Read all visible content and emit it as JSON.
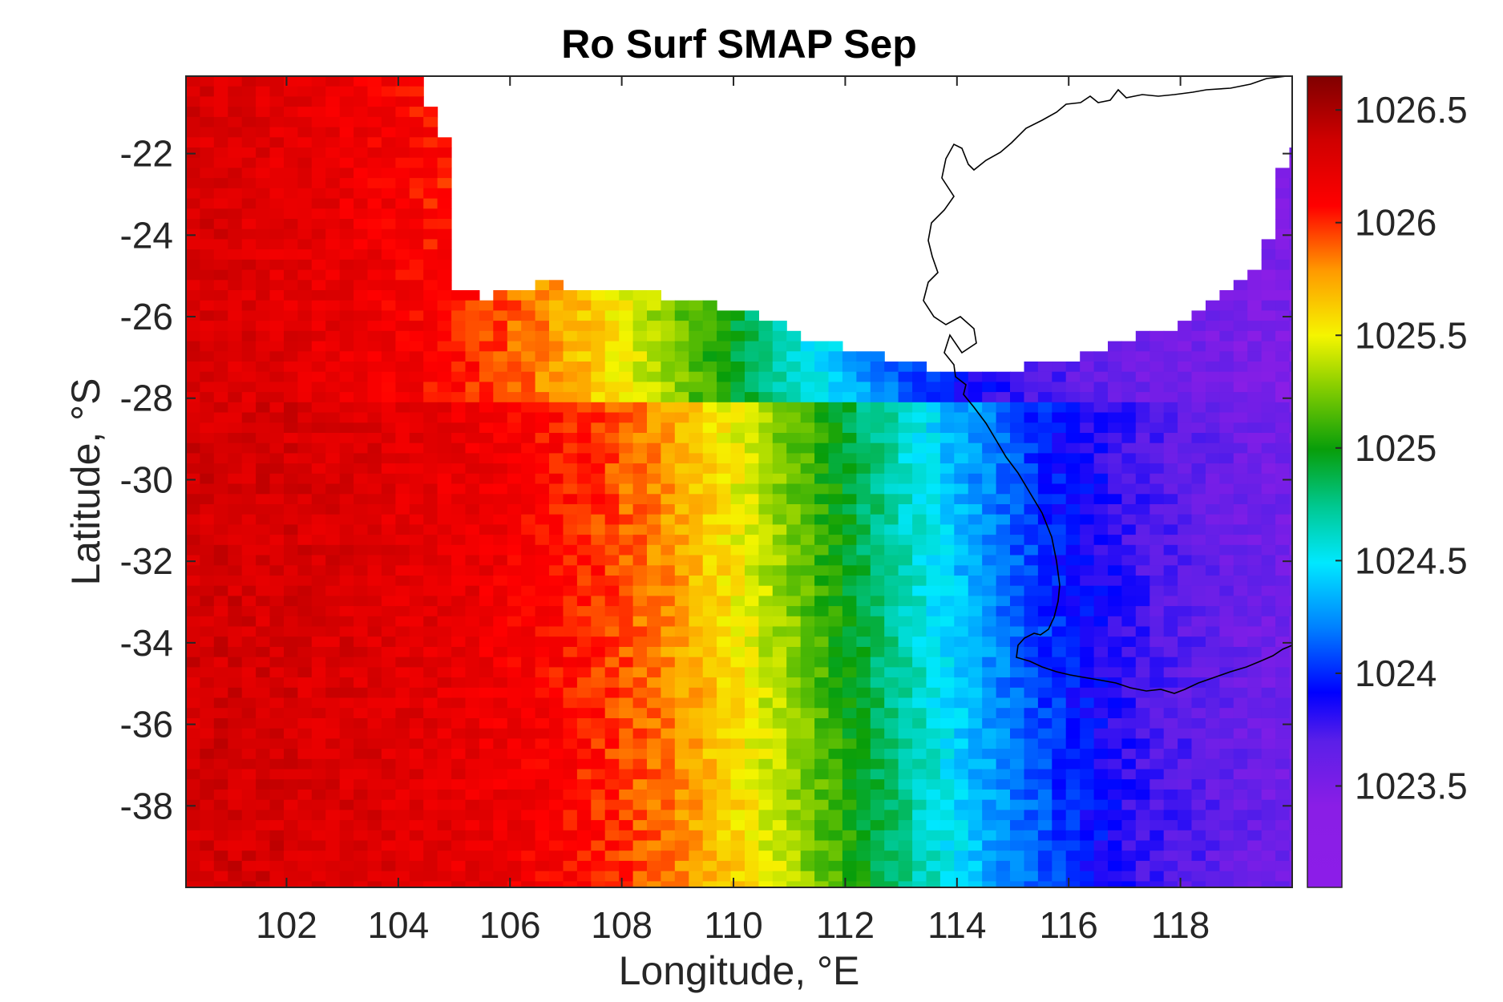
{
  "chart_data": {
    "type": "heatmap",
    "title": "Ro Surf SMAP Sep",
    "xlabel": "Longitude, °E",
    "ylabel": "Latitude, °S",
    "xlim": [
      100.2,
      120.0
    ],
    "ylim": [
      -40.0,
      -20.1
    ],
    "xticks": [
      102,
      104,
      106,
      108,
      110,
      112,
      114,
      116,
      118
    ],
    "yticks": [
      -22,
      -24,
      -26,
      -28,
      -30,
      -32,
      -34,
      -36,
      -38
    ],
    "grid": false,
    "colorbar": {
      "location": "right",
      "min": 1023.05,
      "max": 1026.65,
      "ticks": [
        1026.5,
        1026,
        1025.5,
        1025,
        1024.5,
        1024,
        1023.5
      ],
      "colormap": "jet-like"
    },
    "field": {
      "description_of_gradient": "sea surface density decreasing west to east",
      "west_value": 1026.35,
      "core_green_value": 1024.9,
      "east_value": 1023.4,
      "grid_step_deg": 0.25
    },
    "land_mask": "Western Australia coastline (white), land above the coastline in the upper right"
  },
  "colors": {
    "axis": "#262626",
    "land": "#ffffff",
    "coast": "#000000"
  }
}
